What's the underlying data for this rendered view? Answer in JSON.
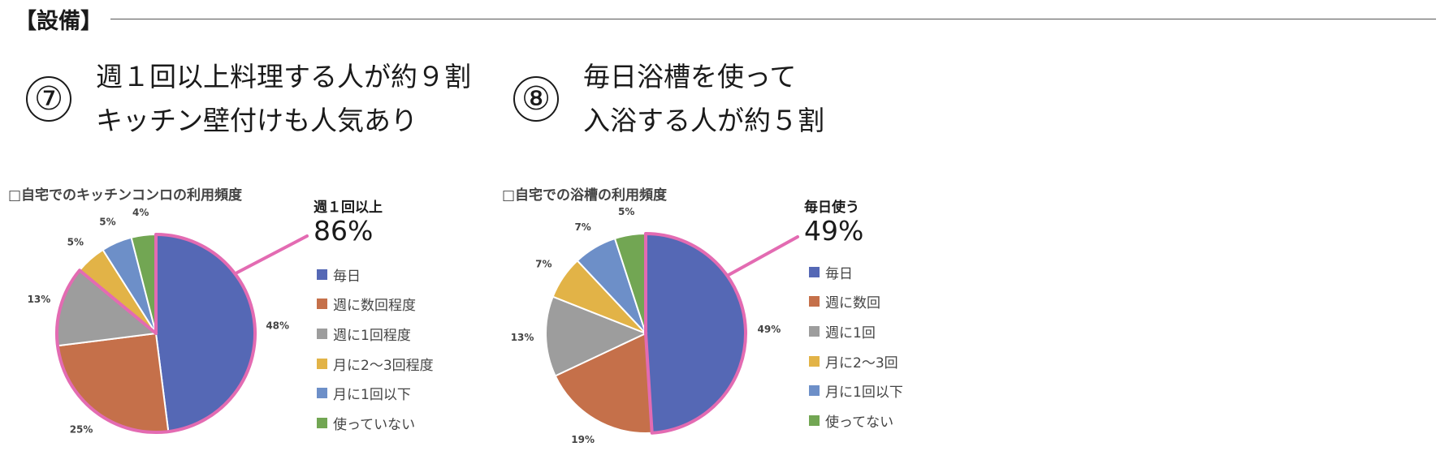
{
  "section": {
    "title": "【設備】"
  },
  "panels": [
    {
      "number": "⑦",
      "headline": [
        "週１回以上料理する人が約９割",
        "キッチン壁付けも人気あり"
      ],
      "chart_title": "□自宅でのキッチンコンロの利用頻度",
      "callout": {
        "label": "週１回以上",
        "value": "86%"
      }
    },
    {
      "number": "⑧",
      "headline": [
        "毎日浴槽を使って",
        "入浴する人が約５割"
      ],
      "chart_title": "□自宅での浴槽の利用頻度",
      "callout": {
        "label": "毎日使う",
        "value": "49%"
      }
    }
  ],
  "chart_data": [
    {
      "type": "pie",
      "title": "□自宅でのキッチンコンロの利用頻度",
      "categories": [
        "毎日",
        "週に数回程度",
        "週に1回程度",
        "月に2〜3回程度",
        "月に1回以下",
        "使っていない"
      ],
      "values": [
        48,
        25,
        13,
        5,
        5,
        4
      ],
      "labels": [
        "48%",
        "25%",
        "13%",
        "5%",
        "5%",
        "4%"
      ],
      "colors": [
        "#5568b5",
        "#c5704a",
        "#9d9d9d",
        "#e2b347",
        "#6d8fc8",
        "#72a653"
      ],
      "highlight": {
        "slices": [
          0,
          1,
          2
        ],
        "label": "週１回以上",
        "value": "86%",
        "color": "#e36bb2"
      },
      "legend_position": "right"
    },
    {
      "type": "pie",
      "title": "□自宅での浴槽の利用頻度",
      "categories": [
        "毎日",
        "週に数回",
        "週に1回",
        "月に2〜3回",
        "月に1回以下",
        "使ってない"
      ],
      "values": [
        49,
        19,
        13,
        7,
        7,
        5
      ],
      "labels": [
        "49%",
        "19%",
        "13%",
        "7%",
        "7%",
        "5%"
      ],
      "colors": [
        "#5568b5",
        "#c5704a",
        "#9d9d9d",
        "#e2b347",
        "#6d8fc8",
        "#72a653"
      ],
      "highlight": {
        "slices": [
          0
        ],
        "label": "毎日使う",
        "value": "49%",
        "color": "#e36bb2"
      },
      "legend_position": "right"
    }
  ]
}
